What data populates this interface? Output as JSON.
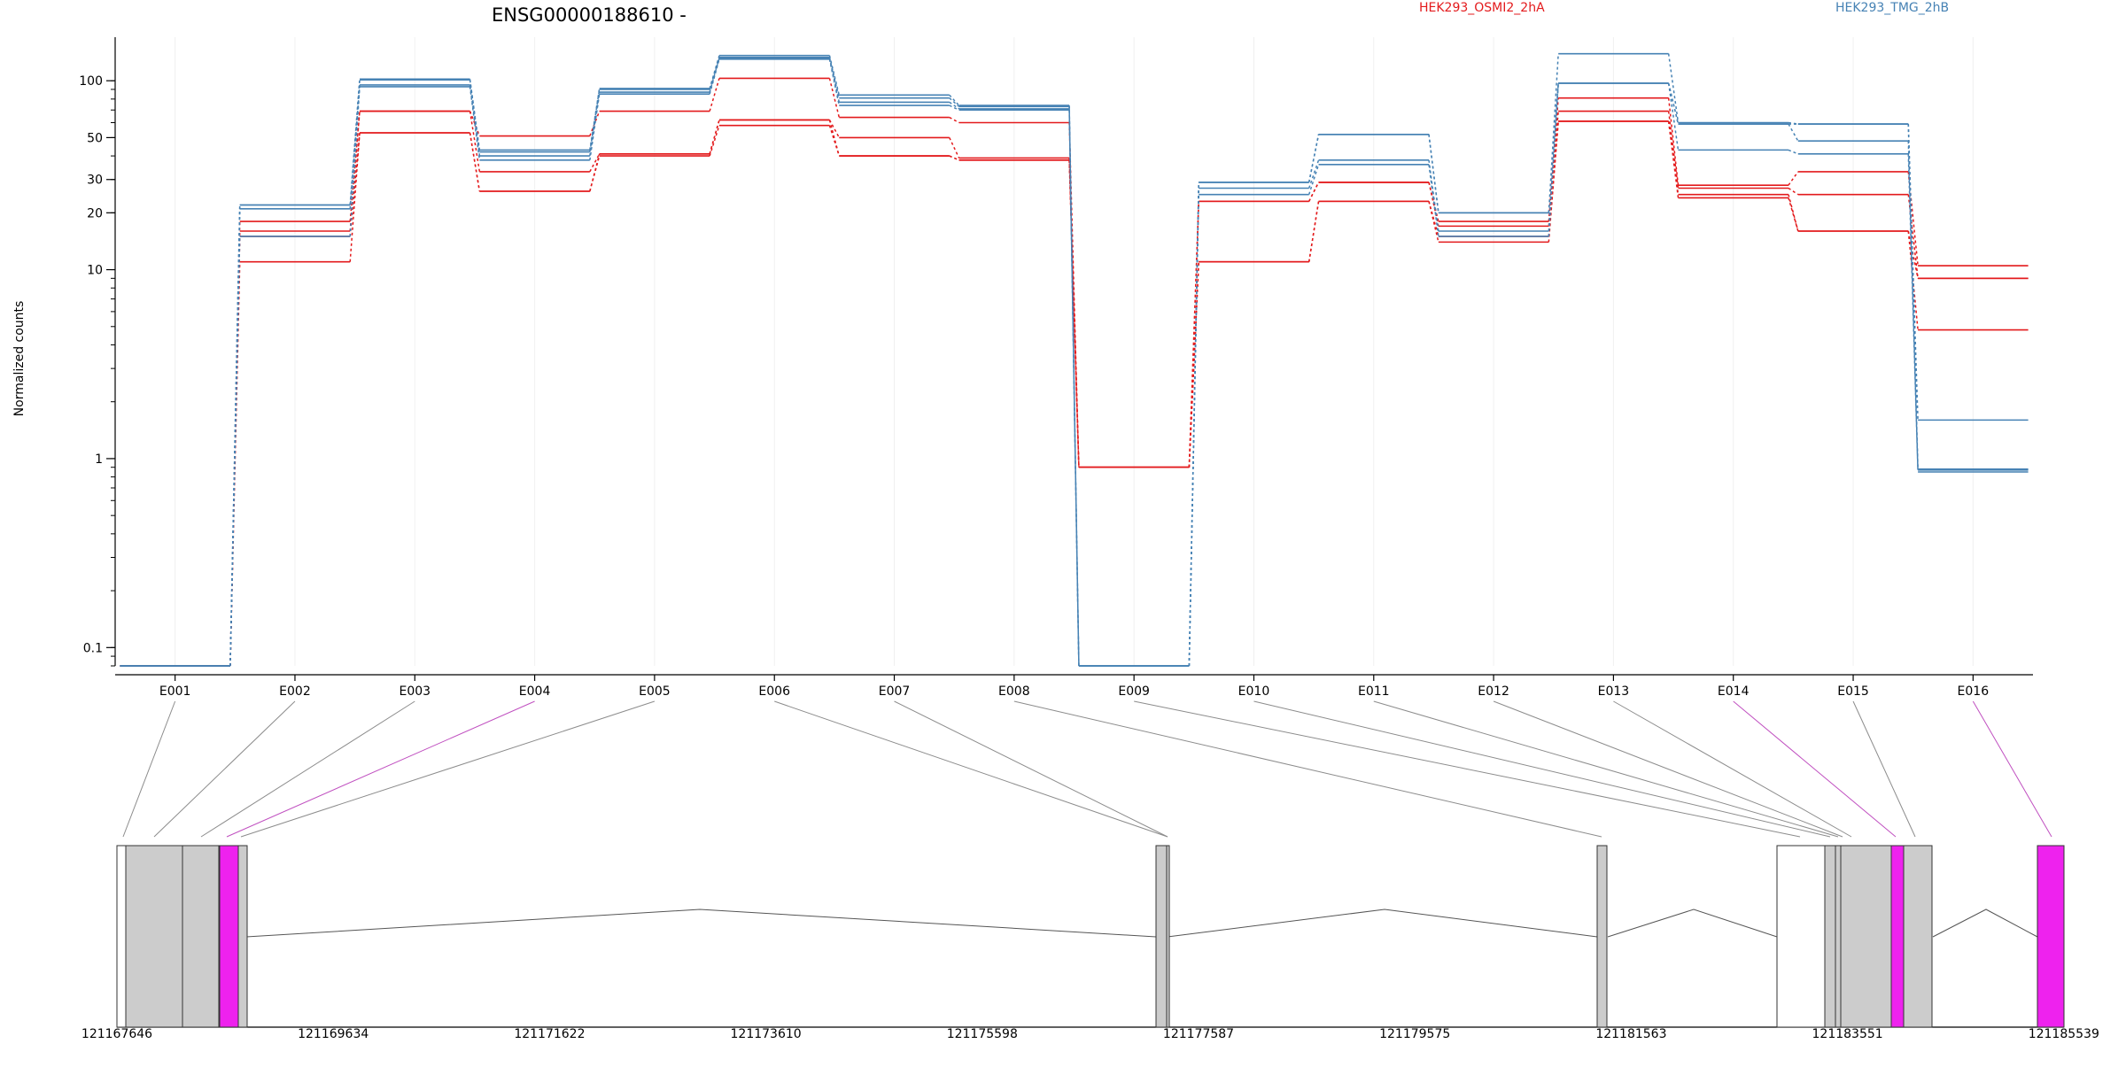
{
  "chart_data": {
    "type": "line",
    "title": "ENSG00000188610 -",
    "xlabel": "",
    "ylabel": "Normalized counts",
    "yscale": "log",
    "ylim": [
      0.08,
      170
    ],
    "grid": "vertical",
    "legend_placement": "top",
    "yticks": [
      {
        "value": 0.1,
        "label": "0.1"
      },
      {
        "value": 1,
        "label": "1"
      },
      {
        "value": 10,
        "label": "10"
      },
      {
        "value": 20,
        "label": "20"
      },
      {
        "value": 30,
        "label": "30"
      },
      {
        "value": 50,
        "label": "50"
      },
      {
        "value": 100,
        "label": "100"
      }
    ],
    "categories": [
      "E001",
      "E002",
      "E003",
      "E004",
      "E005",
      "E006",
      "E007",
      "E008",
      "E009",
      "E010",
      "E011",
      "E012",
      "E013",
      "E014",
      "E015",
      "E016"
    ],
    "groups": [
      {
        "name": "HEK293_OSMI2_2hA",
        "color": "#e31a1c"
      },
      {
        "name": "HEK293_TMG_2hB",
        "color": "#4682b4"
      }
    ],
    "series": [
      {
        "group": 0,
        "values": [
          0.08,
          11,
          53,
          26,
          40,
          58,
          40,
          38,
          0.9,
          11,
          23,
          14,
          61,
          24,
          16,
          4.8
        ]
      },
      {
        "group": 0,
        "values": [
          0.08,
          15,
          53,
          26,
          41,
          62,
          40,
          38,
          0.9,
          11,
          23,
          15,
          61,
          25,
          16,
          9
        ]
      },
      {
        "group": 0,
        "values": [
          0.08,
          16,
          69,
          33,
          41,
          62,
          50,
          39,
          0.9,
          23,
          29,
          17,
          69,
          27,
          25,
          9
        ]
      },
      {
        "group": 0,
        "values": [
          0.08,
          18,
          69,
          51,
          69,
          103,
          64,
          60,
          0.9,
          23,
          29,
          18,
          81,
          28,
          33,
          10.5
        ]
      },
      {
        "group": 1,
        "values": [
          0.08,
          15,
          93,
          38,
          85,
          130,
          74,
          70,
          0.08,
          25,
          36,
          15,
          97,
          43,
          41,
          0.85
        ]
      },
      {
        "group": 1,
        "values": [
          0.08,
          21,
          95,
          40,
          87,
          132,
          77,
          71,
          0.08,
          27,
          38,
          16,
          97,
          59,
          48,
          0.87
        ]
      },
      {
        "group": 1,
        "values": [
          0.08,
          22,
          101,
          42,
          90,
          133,
          81,
          73,
          0.08,
          29,
          52,
          20,
          97,
          59,
          59,
          0.88
        ]
      },
      {
        "group": 1,
        "values": [
          0.08,
          22,
          102,
          43,
          91,
          136,
          84,
          74,
          0.08,
          29,
          52,
          20,
          139,
          60,
          59,
          1.6
        ]
      }
    ],
    "gene_model": {
      "coordinate_labels": [
        "121167646",
        "121169634",
        "121171622",
        "121173610",
        "121175598",
        "121177587",
        "121179575",
        "121181563",
        "121183551",
        "121185539"
      ],
      "highlighted_exons": [
        "E004",
        "E014",
        "E016"
      ],
      "colors": {
        "exon_fill": "#cccccc",
        "highlight_fill": "#ee22ee",
        "connector": "#8c8c8c",
        "highlight_connector": "#c050c0",
        "intron_line": "#555555"
      }
    }
  }
}
